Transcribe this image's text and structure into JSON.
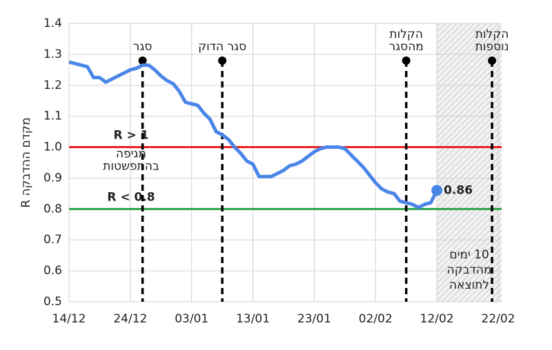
{
  "chart_data": {
    "type": "line",
    "ylabel": "מקדם ההדבקה R",
    "x": [
      "14/12",
      "15/12",
      "16/12",
      "17/12",
      "18/12",
      "19/12",
      "20/12",
      "21/12",
      "22/12",
      "23/12",
      "24/12",
      "25/12",
      "26/12",
      "27/12",
      "28/12",
      "29/12",
      "30/12",
      "31/12",
      "01/01",
      "02/01",
      "03/01",
      "04/01",
      "05/01",
      "06/01",
      "07/01",
      "08/01",
      "09/01",
      "10/01",
      "11/01",
      "12/01",
      "13/01",
      "14/01",
      "15/01",
      "16/01",
      "17/01",
      "18/01",
      "19/01",
      "20/01",
      "21/01",
      "22/01",
      "23/01",
      "24/01",
      "25/01",
      "26/01",
      "27/01",
      "28/01",
      "29/01",
      "30/01",
      "31/01",
      "01/02",
      "02/02",
      "03/02",
      "04/02",
      "05/02",
      "06/02",
      "07/02",
      "08/02",
      "09/02",
      "10/02",
      "11/02",
      "12/02",
      "13/02",
      "14/02",
      "15/02",
      "16/02",
      "17/02",
      "18/02",
      "19/02",
      "20/02",
      "21/02",
      "22/02"
    ],
    "values": [
      1.275,
      1.27,
      1.265,
      1.26,
      1.225,
      1.225,
      1.21,
      1.22,
      1.23,
      1.24,
      1.25,
      1.255,
      1.265,
      1.265,
      1.25,
      1.23,
      1.215,
      1.205,
      1.18,
      1.145,
      1.14,
      1.135,
      1.11,
      1.09,
      1.05,
      1.04,
      1.025,
      1.0,
      0.98,
      0.955,
      0.945,
      0.905,
      0.905,
      0.905,
      0.915,
      0.925,
      0.94,
      0.945,
      0.955,
      0.97,
      0.985,
      0.995,
      1.0,
      1.0,
      1.0,
      0.995,
      0.975,
      0.955,
      0.935,
      0.91,
      0.885,
      0.865,
      0.855,
      0.85,
      0.825,
      0.82,
      0.815,
      0.805,
      0.815,
      0.82,
      0.86,
      null,
      null,
      null,
      null,
      null,
      null,
      null,
      null,
      null,
      null
    ],
    "color": "#4a86e8",
    "xticks": [
      "14/12",
      "24/12",
      "03/01",
      "13/01",
      "23/01",
      "02/02",
      "12/02",
      "22/02"
    ],
    "ylim": [
      0.5,
      1.4
    ],
    "yticks": [
      0.5,
      0.6,
      0.7,
      0.8,
      0.9,
      {
        "value": 1,
        "label": "1.0"
      },
      1.1,
      1.2,
      1.3,
      1.4
    ],
    "grid": true,
    "hlines": [
      {
        "value": 1,
        "color": "#e8201e",
        "label": "R > 1",
        "note": [
          "מגיפה",
          "בהתפשטות"
        ]
      },
      {
        "value": 0.8,
        "color": "#2ca34a",
        "label": "R < 0.8"
      }
    ],
    "events": [
      {
        "x": "26/12",
        "label": [
          "סגר"
        ]
      },
      {
        "x": "08/01",
        "label": [
          "סגר הדוק"
        ]
      },
      {
        "x": "07/02",
        "label": [
          "הקלות",
          "מהסגר"
        ]
      },
      {
        "x": "21/02",
        "label": [
          "הקלות",
          "נוספות"
        ]
      }
    ],
    "shaded": {
      "from": "12/02",
      "to": "22/02",
      "label": [
        "10 ימים",
        "מהדבקה",
        "לתוצאה"
      ]
    }
  }
}
